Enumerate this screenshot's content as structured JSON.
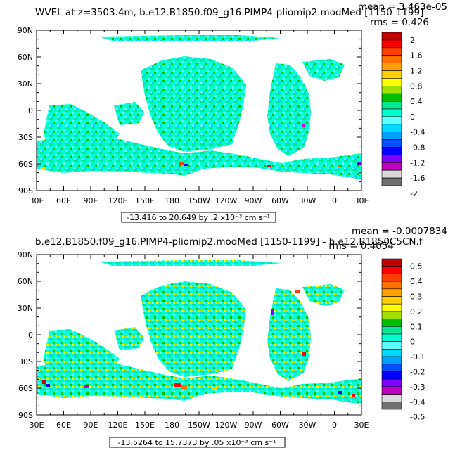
{
  "charts": [
    {
      "title": "WVEL at z=3503.4m, b.e12.B1850.f09_g16.PIMP4-pliomip2.modMed  [1150-1199]",
      "mean_label": "mean = 3.463e-05",
      "rms_label": "rms = 0.426",
      "range_label": "-13.416 to 20.649 by .2 x10⁻³ cm s⁻¹",
      "cb_ticks": [
        "2",
        "1.6",
        "1.2",
        "0.8",
        "0.4",
        "0",
        "-0.4",
        "-0.8",
        "-1.2",
        "-1.6",
        "-2"
      ]
    },
    {
      "title": "b.e12.B1850.f09_g16.PIMP4-pliomip2.modMed  [1150-1199] - b.e12.B1850C5CN.f",
      "mean_label": "mean = -0.0007834",
      "rms_label": "rms = 0.4054",
      "range_label": "-13.5264 to 15.7373 by .05 x10⁻³ cm s⁻¹",
      "cb_ticks": [
        "0.5",
        "0.4",
        "0.3",
        "0.2",
        "0.1",
        "0",
        "-0.1",
        "-0.2",
        "-0.3",
        "-0.4",
        "-0.5"
      ]
    }
  ],
  "chart_data": [
    {
      "type": "heatmap",
      "title": "WVEL at z=3503.4m, b.e12.B1850.f09_g16.PIMP4-pliomip2.modMed  [1150-1199]",
      "x_ticks": [
        "30E",
        "60E",
        "90E",
        "120E",
        "150E",
        "180",
        "150W",
        "120W",
        "90W",
        "60W",
        "30W",
        "0",
        "30E"
      ],
      "y_ticks": [
        "90N",
        "60N",
        "30N",
        "0",
        "30S",
        "60S",
        "90S"
      ],
      "xlim": [
        30,
        390
      ],
      "ylim": [
        -90,
        90
      ],
      "colorbar_levels": [
        -2,
        -1.8,
        -1.6,
        -1.4,
        -1.2,
        -1.0,
        -0.8,
        -0.6,
        -0.4,
        -0.2,
        0,
        0.2,
        0.4,
        0.6,
        0.8,
        1.0,
        1.2,
        1.4,
        1.6,
        1.8,
        2
      ],
      "colorbar_colors": [
        "#707070",
        "#d8d8d8",
        "#c000c0",
        "#8000ff",
        "#0000ff",
        "#0050ff",
        "#00a0ff",
        "#00d8ff",
        "#60ffff",
        "#00ffd0",
        "#00e890",
        "#00c000",
        "#a0e000",
        "#ffff00",
        "#ffd000",
        "#ffa000",
        "#ff7000",
        "#ff4000",
        "#ff0000",
        "#c00000"
      ],
      "mean": 3.463e-05,
      "rms": 0.426,
      "min": -13.416,
      "max": 20.649,
      "interval": 0.2,
      "units": "x10^-3 cm s^-1"
    },
    {
      "type": "heatmap",
      "title": "b.e12.B1850.f09_g16.PIMP4-pliomip2.modMed  [1150-1199] - b.e12.B1850C5CN.f",
      "x_ticks": [
        "30E",
        "60E",
        "90E",
        "120E",
        "150E",
        "180",
        "150W",
        "120W",
        "90W",
        "60W",
        "30W",
        "0",
        "30E"
      ],
      "y_ticks": [
        "90N",
        "60N",
        "30N",
        "0",
        "30S",
        "60S",
        "90S"
      ],
      "xlim": [
        30,
        390
      ],
      "ylim": [
        -90,
        90
      ],
      "colorbar_levels": [
        -0.5,
        -0.45,
        -0.4,
        -0.35,
        -0.3,
        -0.25,
        -0.2,
        -0.15,
        -0.1,
        -0.05,
        0,
        0.05,
        0.1,
        0.15,
        0.2,
        0.25,
        0.3,
        0.35,
        0.4,
        0.45,
        0.5
      ],
      "colorbar_colors": [
        "#707070",
        "#d8d8d8",
        "#c000c0",
        "#8000ff",
        "#0000ff",
        "#0050ff",
        "#00a0ff",
        "#00d8ff",
        "#60ffff",
        "#00ffd0",
        "#00e890",
        "#00c000",
        "#a0e000",
        "#ffff00",
        "#ffd000",
        "#ffa000",
        "#ff7000",
        "#ff4000",
        "#ff0000",
        "#c00000"
      ],
      "mean": -0.0007834,
      "rms": 0.4054,
      "min": -13.5264,
      "max": 15.7373,
      "interval": 0.05,
      "units": "x10^-3 cm s^-1"
    }
  ]
}
